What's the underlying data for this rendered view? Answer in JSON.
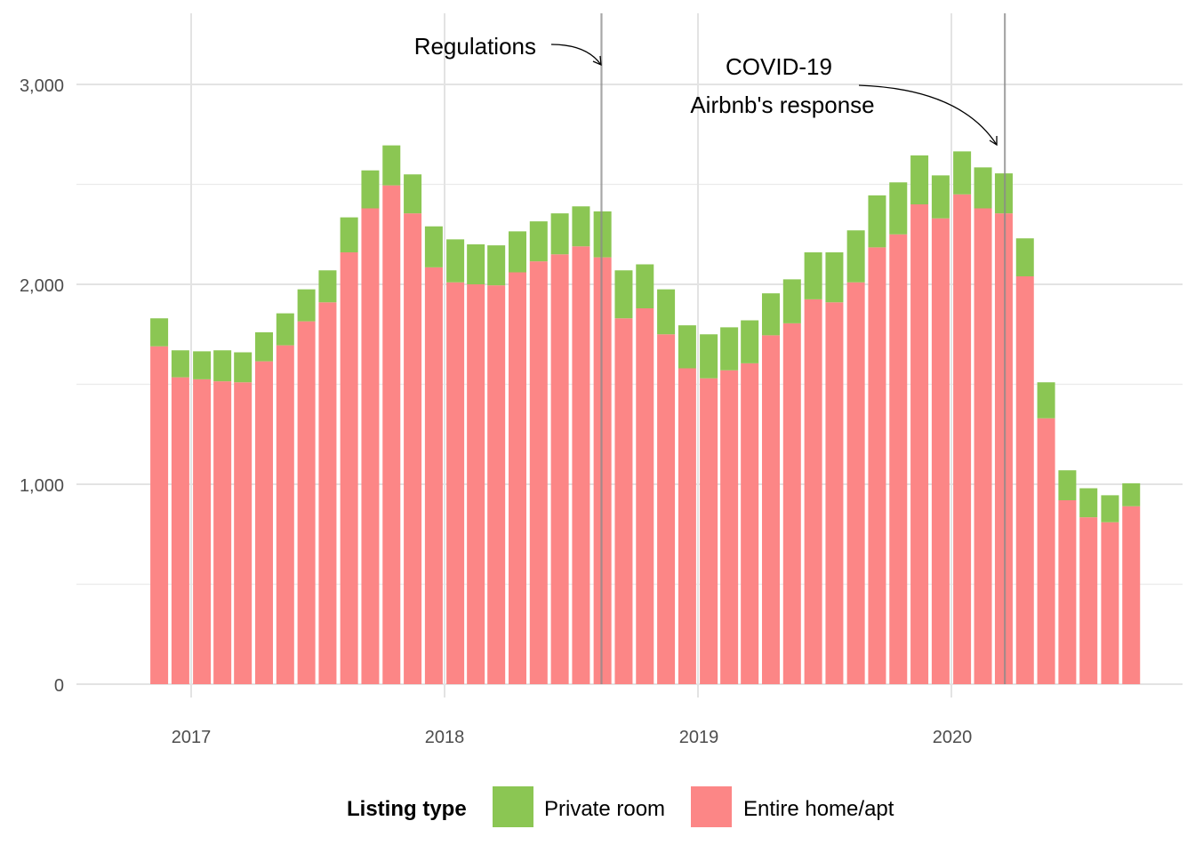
{
  "chart_data": {
    "type": "bar",
    "stacked": true,
    "x_axis": {
      "type": "date",
      "ticks": [
        "2017",
        "2018",
        "2019",
        "2020"
      ]
    },
    "y_axis": {
      "ticks": [
        "0",
        "1,000",
        "2,000",
        "3,000"
      ],
      "ylim": [
        0,
        3000
      ]
    },
    "grid": true,
    "legend": {
      "title": "Listing type",
      "position": "bottom",
      "entries": [
        {
          "label": "Private room",
          "color": "#8bc653"
        },
        {
          "label": "Entire home/apt",
          "color": "#fc8686"
        }
      ]
    },
    "months": [
      "2016-11",
      "2016-12",
      "2017-01",
      "2017-02",
      "2017-03",
      "2017-04",
      "2017-05",
      "2017-06",
      "2017-07",
      "2017-08",
      "2017-09",
      "2017-10",
      "2017-11",
      "2017-12",
      "2018-01",
      "2018-02",
      "2018-03",
      "2018-04",
      "2018-05",
      "2018-06",
      "2018-07",
      "2018-08",
      "2018-09",
      "2018-10",
      "2018-11",
      "2018-12",
      "2019-01",
      "2019-02",
      "2019-03",
      "2019-04",
      "2019-05",
      "2019-06",
      "2019-07",
      "2019-08",
      "2019-09",
      "2019-10",
      "2019-11",
      "2019-12",
      "2020-01",
      "2020-02",
      "2020-03",
      "2020-04",
      "2020-05",
      "2020-06",
      "2020-07",
      "2020-08",
      "2020-09"
    ],
    "series": [
      {
        "name": "Entire home/apt",
        "color": "#fc8686",
        "values": [
          1690,
          1535,
          1525,
          1515,
          1510,
          1615,
          1695,
          1815,
          1910,
          2160,
          2380,
          2495,
          2355,
          2085,
          2010,
          2000,
          1995,
          2060,
          2115,
          2150,
          2190,
          2135,
          1830,
          1880,
          1750,
          1580,
          1530,
          1570,
          1605,
          1745,
          1805,
          1925,
          1910,
          2010,
          2185,
          2250,
          2400,
          2330,
          2450,
          2380,
          2355,
          2040,
          1330,
          920,
          835,
          810,
          890
        ]
      },
      {
        "name": "Private room",
        "color": "#8bc653",
        "values": [
          140,
          135,
          140,
          155,
          150,
          145,
          160,
          160,
          160,
          175,
          190,
          200,
          195,
          205,
          215,
          200,
          200,
          205,
          200,
          205,
          200,
          230,
          240,
          220,
          225,
          215,
          220,
          215,
          215,
          210,
          220,
          235,
          250,
          260,
          260,
          260,
          245,
          215,
          215,
          205,
          200,
          190,
          180,
          150,
          145,
          135,
          115
        ]
      }
    ],
    "annotations": [
      {
        "text": "Regulations",
        "date": "2018-08-15"
      },
      {
        "text": "COVID-19",
        "date": "2020-03-18"
      },
      {
        "text": "Airbnb's response",
        "date": "2020-03-18"
      }
    ]
  }
}
